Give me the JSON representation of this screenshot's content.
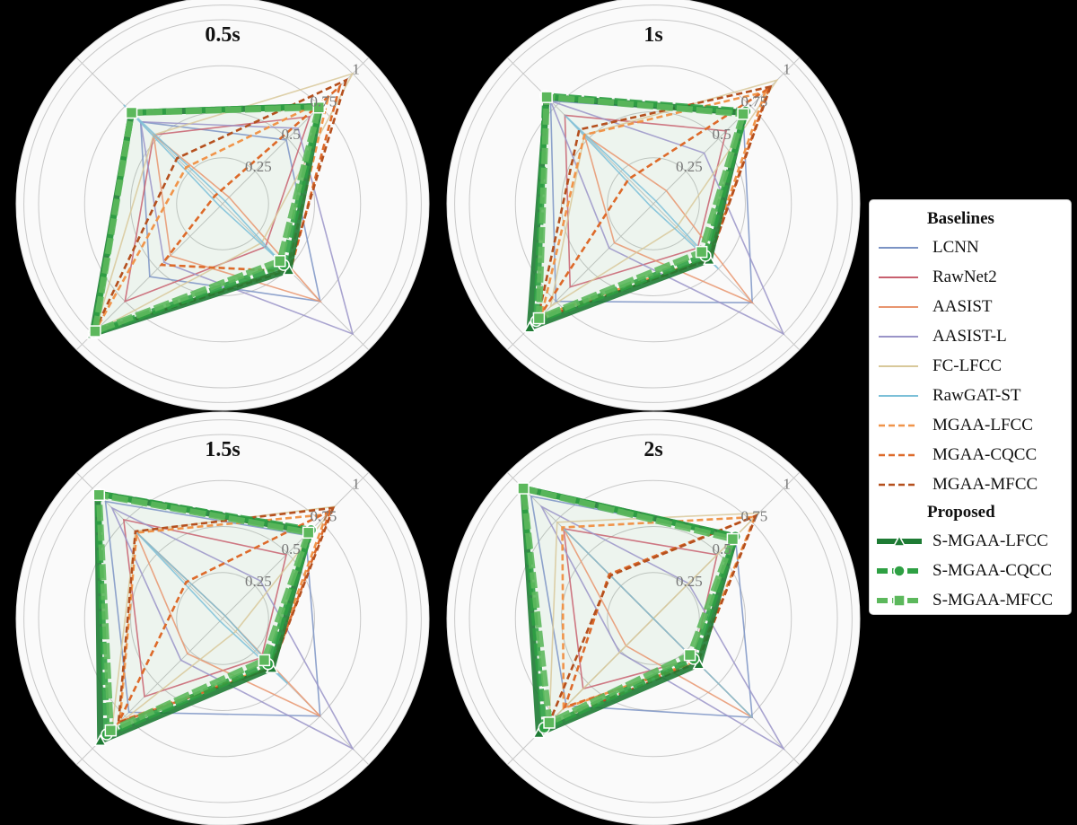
{
  "chart_data": [
    {
      "type": "radar",
      "title": "0.5s",
      "value_order": "axes clockwise from top-right: [top-right, bottom-right, bottom-left, top-left]",
      "rlim": [
        0,
        1
      ],
      "rticks": [
        "0.25",
        "0.5",
        "0.75",
        "1"
      ],
      "series": {
        "LCNN": [
          0.49,
          0.75,
          0.56,
          0.63
        ],
        "RawNet2": [
          0.67,
          0.33,
          0.75,
          0.53
        ],
        "AASIST": [
          0.05,
          0.75,
          0.4,
          0.53
        ],
        "AASIST-L": [
          0.58,
          1.0,
          0.45,
          0.63
        ],
        "FC-LFCC": [
          1.0,
          0.3,
          0.98,
          0.53
        ],
        "RawGAT-ST": [
          0.02,
          0.45,
          0.02,
          0.76
        ],
        "MGAA-LFCC": [
          0.81,
          0.5,
          0.98,
          0.28
        ],
        "MGAA-CQCC": [
          0.9,
          0.52,
          0.47,
          0.06
        ],
        "MGAA-MFCC": [
          0.95,
          0.51,
          0.99,
          0.35
        ],
        "S-MGAA-LFCC": [
          0.75,
          0.51,
          1.0,
          0.7
        ],
        "S-MGAA-CQCC": [
          0.75,
          0.47,
          0.99,
          0.7
        ],
        "S-MGAA-MFCC": [
          0.74,
          0.44,
          0.98,
          0.7
        ]
      }
    },
    {
      "type": "radar",
      "title": "1s",
      "value_order": "axes clockwise from top-right: [top-right, bottom-right, bottom-left, top-left]",
      "rlim": [
        0,
        1
      ],
      "rticks": [
        "0.25",
        "0.5",
        "0.75",
        "1"
      ],
      "series": {
        "LCNN": [
          0.69,
          0.76,
          0.75,
          0.79
        ],
        "RawNet2": [
          0.56,
          0.34,
          0.64,
          0.68
        ],
        "AASIST": [
          0.1,
          0.76,
          0.3,
          0.53
        ],
        "AASIST-L": [
          0.39,
          1.0,
          0.34,
          0.79
        ],
        "FC-LFCC": [
          0.95,
          0.18,
          0.79,
          0.53
        ],
        "RawGAT-ST": [
          0.02,
          0.5,
          0.02,
          0.68
        ],
        "MGAA-LFCC": [
          0.86,
          0.42,
          0.86,
          0.53
        ],
        "MGAA-CQCC": [
          0.89,
          0.43,
          0.89,
          0.19
        ],
        "MGAA-MFCC": [
          0.9,
          0.43,
          0.89,
          0.57
        ],
        "S-MGAA-LFCC": [
          0.7,
          0.43,
          0.95,
          0.82
        ],
        "S-MGAA-CQCC": [
          0.71,
          0.4,
          0.9,
          0.83
        ],
        "S-MGAA-MFCC": [
          0.69,
          0.37,
          0.88,
          0.82
        ]
      }
    },
    {
      "type": "radar",
      "title": "1.5s",
      "value_order": "axes clockwise from top-right: [top-right, bottom-right, bottom-left, top-left]",
      "rlim": [
        0,
        1
      ],
      "rticks": [
        "0.25",
        "0.5",
        "0.75",
        "1"
      ],
      "series": {
        "LCNN": [
          0.64,
          0.75,
          0.72,
          0.9
        ],
        "RawNet2": [
          0.49,
          0.3,
          0.6,
          0.76
        ],
        "AASIST": [
          0.02,
          0.75,
          0.27,
          0.67
        ],
        "AASIST-L": [
          0.29,
          1.0,
          0.32,
          0.85
        ],
        "FC-LFCC": [
          0.86,
          0.1,
          0.85,
          0.67
        ],
        "RawGAT-ST": [
          0.02,
          0.5,
          0.02,
          0.66
        ],
        "MGAA-LFCC": [
          0.8,
          0.37,
          0.79,
          0.66
        ],
        "MGAA-CQCC": [
          0.83,
          0.38,
          0.8,
          0.28
        ],
        "MGAA-MFCC": [
          0.85,
          0.38,
          0.8,
          0.67
        ],
        "S-MGAA-LFCC": [
          0.67,
          0.38,
          0.94,
          0.96
        ],
        "S-MGAA-CQCC": [
          0.68,
          0.35,
          0.89,
          0.96
        ],
        "S-MGAA-MFCC": [
          0.66,
          0.32,
          0.86,
          0.95
        ]
      }
    },
    {
      "type": "radar",
      "title": "2s",
      "value_order": "axes clockwise from top-right: [top-right, bottom-right, bottom-left, top-left]",
      "rlim": [
        0,
        1
      ],
      "rticks": [
        "0.25",
        "0.5",
        "0.75",
        "1"
      ],
      "series": {
        "LCNN": [
          0.63,
          0.76,
          0.67,
          0.94
        ],
        "RawNet2": [
          0.49,
          0.31,
          0.54,
          0.69
        ],
        "AASIST": [
          0.0,
          0.76,
          0.21,
          0.69
        ],
        "AASIST-L": [
          0.27,
          1.0,
          0.26,
          0.86
        ],
        "FC-LFCC": [
          0.81,
          0.0,
          0.8,
          0.74
        ],
        "RawGAT-ST": [
          0.0,
          0.76,
          0.0,
          0.69
        ],
        "MGAA-LFCC": [
          0.78,
          0.33,
          0.69,
          0.7
        ],
        "MGAA-CQCC": [
          0.79,
          0.34,
          0.68,
          0.34
        ],
        "MGAA-MFCC": [
          0.79,
          0.34,
          0.8,
          0.33
        ],
        "S-MGAA-LFCC": [
          0.63,
          0.35,
          0.88,
          1.0
        ],
        "S-MGAA-CQCC": [
          0.63,
          0.31,
          0.84,
          1.0
        ],
        "S-MGAA-MFCC": [
          0.61,
          0.28,
          0.8,
          1.0
        ]
      }
    }
  ],
  "legend": {
    "baselines_heading": "Baselines",
    "proposed_heading": "Proposed",
    "baselines": [
      {
        "name": "LCNN",
        "color": "#7b93c4",
        "style": "solid"
      },
      {
        "name": "RawNet2",
        "color": "#c8606f",
        "style": "solid"
      },
      {
        "name": "AASIST",
        "color": "#e8956f",
        "style": "solid"
      },
      {
        "name": "AASIST-L",
        "color": "#9a94c8",
        "style": "solid"
      },
      {
        "name": "FC-LFCC",
        "color": "#d8c89a",
        "style": "solid"
      },
      {
        "name": "RawGAT-ST",
        "color": "#7cc0d8",
        "style": "solid"
      },
      {
        "name": "MGAA-LFCC",
        "color": "#f0944a",
        "style": "dashed"
      },
      {
        "name": "MGAA-CQCC",
        "color": "#dd6a2a",
        "style": "dashed"
      },
      {
        "name": "MGAA-MFCC",
        "color": "#b5501e",
        "style": "dashed"
      }
    ],
    "proposed": [
      {
        "name": "S-MGAA-LFCC",
        "color": "#1e7b34",
        "marker": "triangle"
      },
      {
        "name": "S-MGAA-CQCC",
        "color": "#2ea043",
        "marker": "circle"
      },
      {
        "name": "S-MGAA-MFCC",
        "color": "#5cb85c",
        "marker": "square"
      }
    ]
  }
}
